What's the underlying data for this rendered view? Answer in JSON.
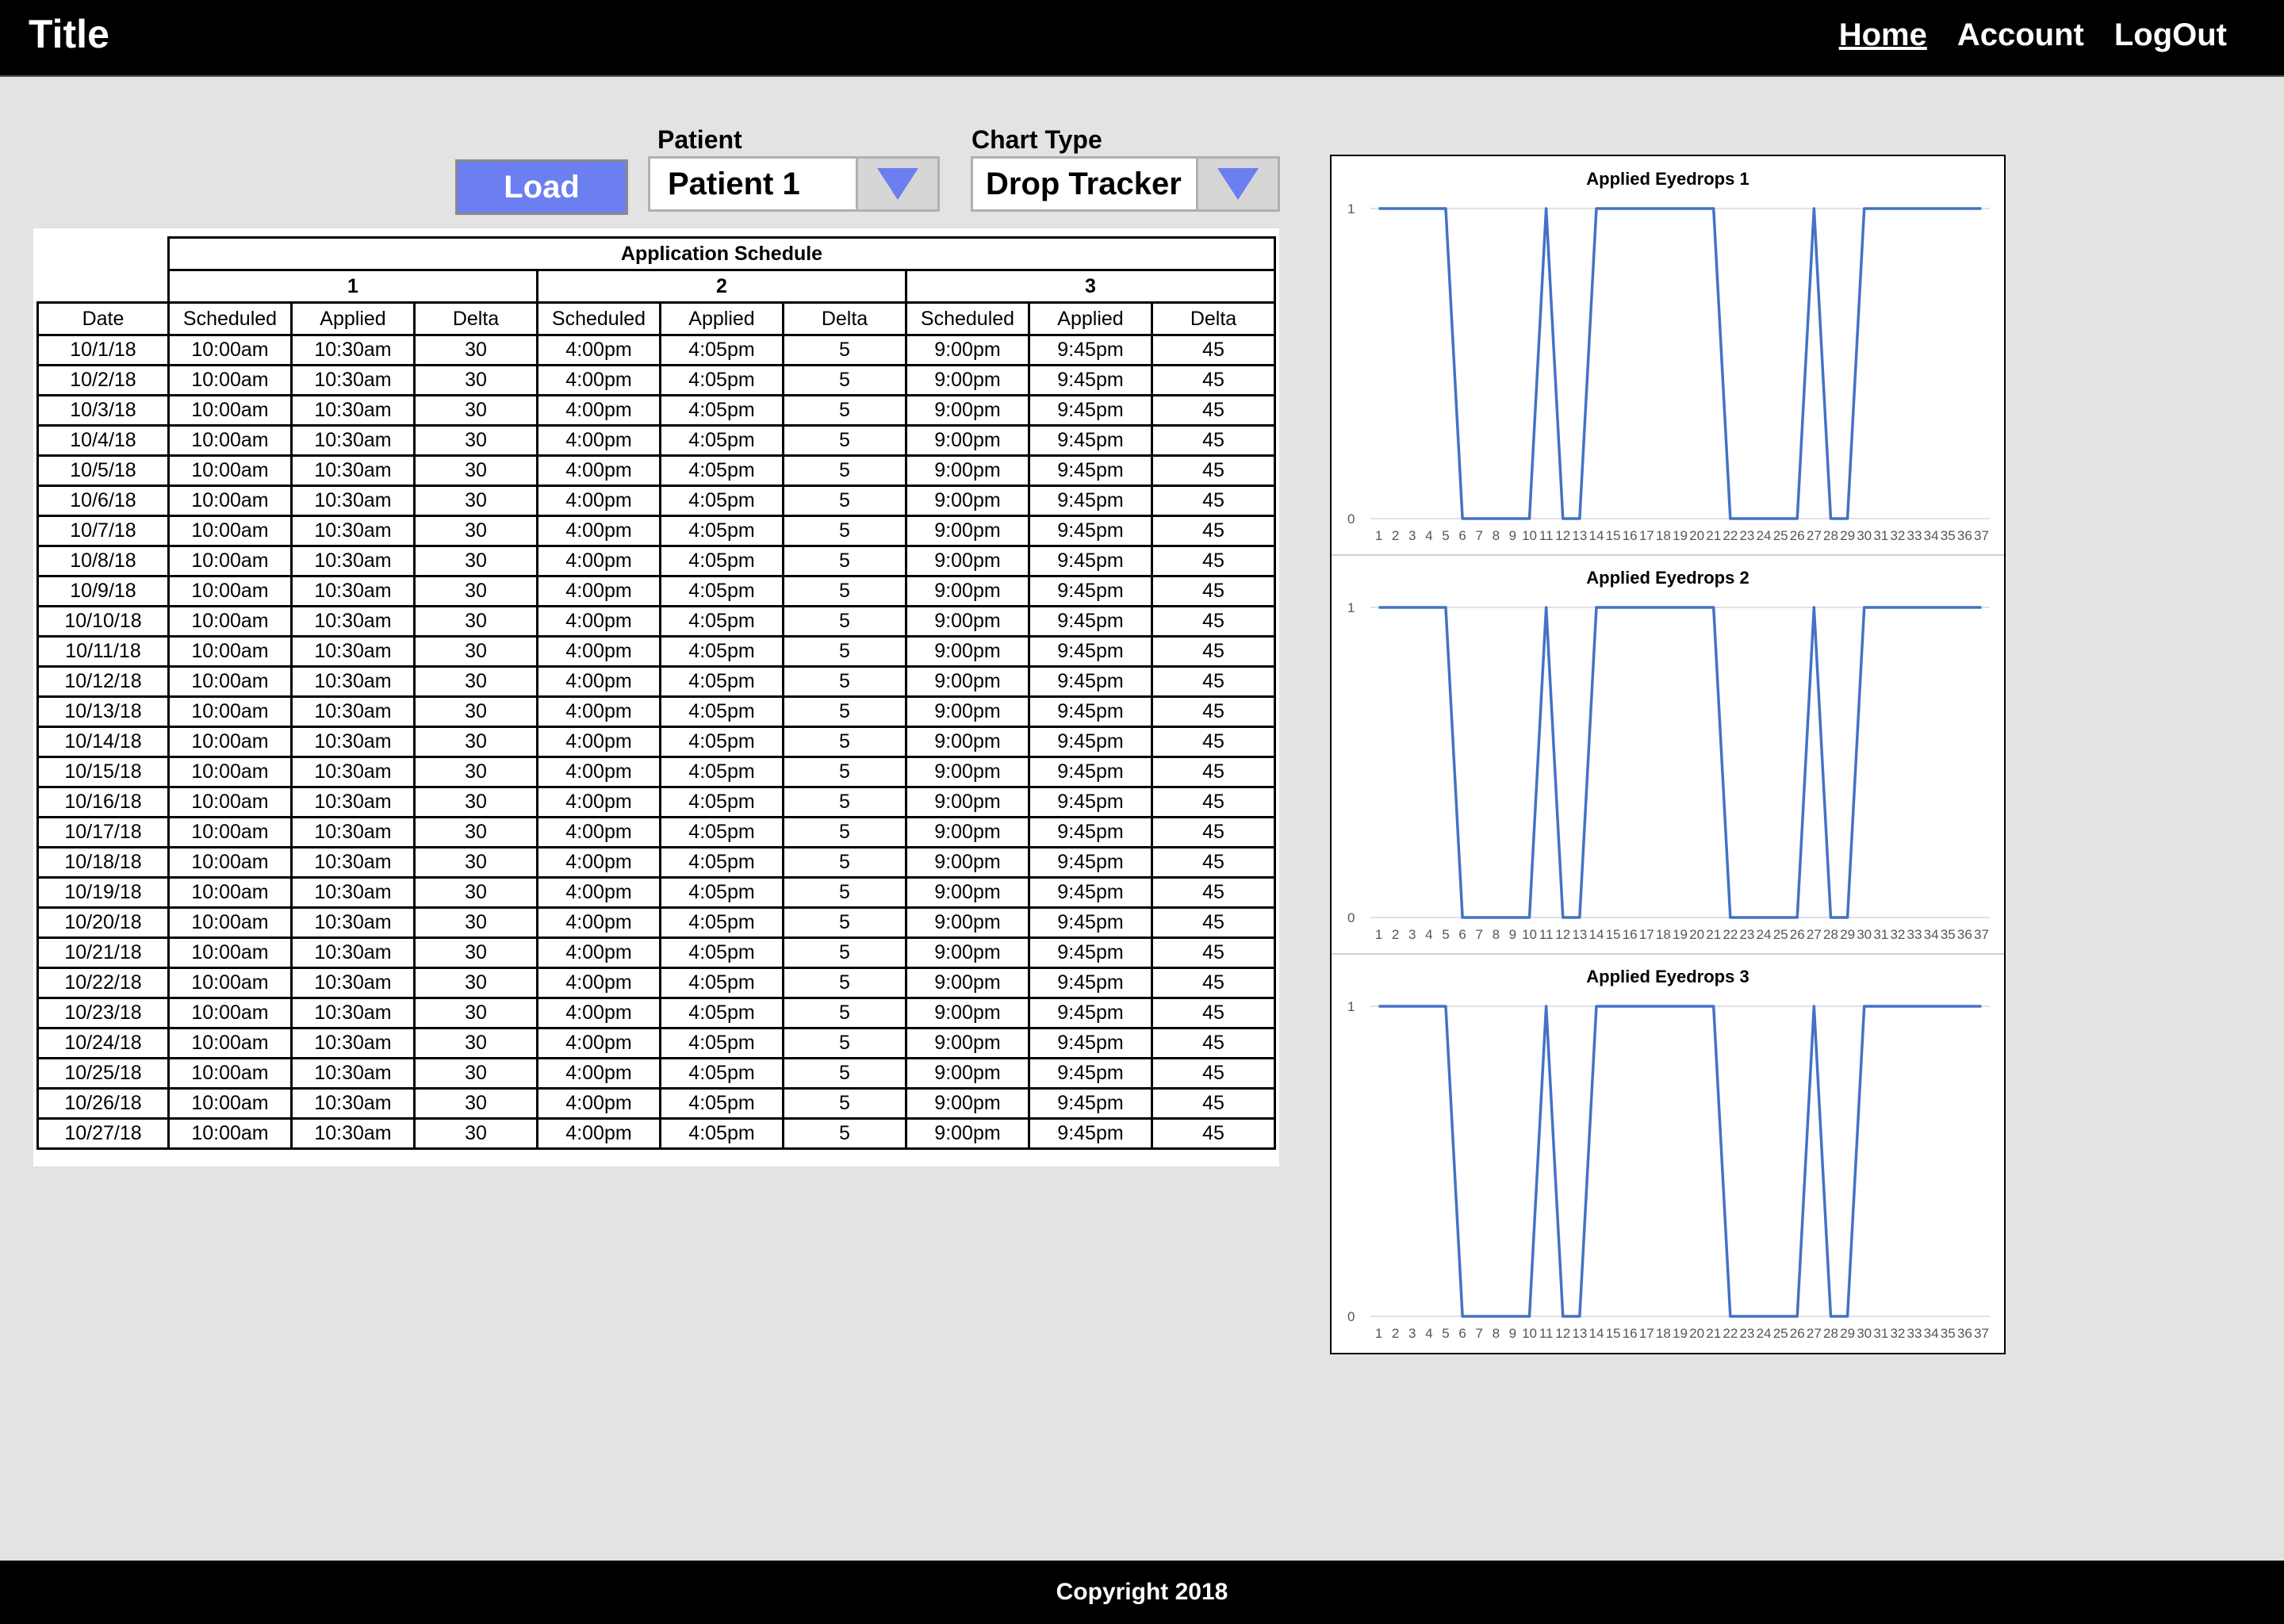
{
  "header": {
    "title": "Title",
    "nav": [
      {
        "label": "Home",
        "active": true
      },
      {
        "label": "Account",
        "active": false
      },
      {
        "label": "LogOut",
        "active": false
      }
    ]
  },
  "controls": {
    "load_label": "Load",
    "patient_label": "Patient",
    "patient_value": "Patient 1",
    "chart_type_label": "Chart Type",
    "chart_type_value": "Drop Tracker",
    "accent_color": "#6b7ff0"
  },
  "table": {
    "title": "Application Schedule",
    "groups": [
      "1",
      "2",
      "3"
    ],
    "columns": [
      "Date",
      "Scheduled",
      "Applied",
      "Delta",
      "Scheduled",
      "Applied",
      "Delta",
      "Scheduled",
      "Applied",
      "Delta"
    ],
    "rows": [
      [
        "10/1/18",
        "10:00am",
        "10:30am",
        "30",
        "4:00pm",
        "4:05pm",
        "5",
        "9:00pm",
        "9:45pm",
        "45"
      ],
      [
        "10/2/18",
        "10:00am",
        "10:30am",
        "30",
        "4:00pm",
        "4:05pm",
        "5",
        "9:00pm",
        "9:45pm",
        "45"
      ],
      [
        "10/3/18",
        "10:00am",
        "10:30am",
        "30",
        "4:00pm",
        "4:05pm",
        "5",
        "9:00pm",
        "9:45pm",
        "45"
      ],
      [
        "10/4/18",
        "10:00am",
        "10:30am",
        "30",
        "4:00pm",
        "4:05pm",
        "5",
        "9:00pm",
        "9:45pm",
        "45"
      ],
      [
        "10/5/18",
        "10:00am",
        "10:30am",
        "30",
        "4:00pm",
        "4:05pm",
        "5",
        "9:00pm",
        "9:45pm",
        "45"
      ],
      [
        "10/6/18",
        "10:00am",
        "10:30am",
        "30",
        "4:00pm",
        "4:05pm",
        "5",
        "9:00pm",
        "9:45pm",
        "45"
      ],
      [
        "10/7/18",
        "10:00am",
        "10:30am",
        "30",
        "4:00pm",
        "4:05pm",
        "5",
        "9:00pm",
        "9:45pm",
        "45"
      ],
      [
        "10/8/18",
        "10:00am",
        "10:30am",
        "30",
        "4:00pm",
        "4:05pm",
        "5",
        "9:00pm",
        "9:45pm",
        "45"
      ],
      [
        "10/9/18",
        "10:00am",
        "10:30am",
        "30",
        "4:00pm",
        "4:05pm",
        "5",
        "9:00pm",
        "9:45pm",
        "45"
      ],
      [
        "10/10/18",
        "10:00am",
        "10:30am",
        "30",
        "4:00pm",
        "4:05pm",
        "5",
        "9:00pm",
        "9:45pm",
        "45"
      ],
      [
        "10/11/18",
        "10:00am",
        "10:30am",
        "30",
        "4:00pm",
        "4:05pm",
        "5",
        "9:00pm",
        "9:45pm",
        "45"
      ],
      [
        "10/12/18",
        "10:00am",
        "10:30am",
        "30",
        "4:00pm",
        "4:05pm",
        "5",
        "9:00pm",
        "9:45pm",
        "45"
      ],
      [
        "10/13/18",
        "10:00am",
        "10:30am",
        "30",
        "4:00pm",
        "4:05pm",
        "5",
        "9:00pm",
        "9:45pm",
        "45"
      ],
      [
        "10/14/18",
        "10:00am",
        "10:30am",
        "30",
        "4:00pm",
        "4:05pm",
        "5",
        "9:00pm",
        "9:45pm",
        "45"
      ],
      [
        "10/15/18",
        "10:00am",
        "10:30am",
        "30",
        "4:00pm",
        "4:05pm",
        "5",
        "9:00pm",
        "9:45pm",
        "45"
      ],
      [
        "10/16/18",
        "10:00am",
        "10:30am",
        "30",
        "4:00pm",
        "4:05pm",
        "5",
        "9:00pm",
        "9:45pm",
        "45"
      ],
      [
        "10/17/18",
        "10:00am",
        "10:30am",
        "30",
        "4:00pm",
        "4:05pm",
        "5",
        "9:00pm",
        "9:45pm",
        "45"
      ],
      [
        "10/18/18",
        "10:00am",
        "10:30am",
        "30",
        "4:00pm",
        "4:05pm",
        "5",
        "9:00pm",
        "9:45pm",
        "45"
      ],
      [
        "10/19/18",
        "10:00am",
        "10:30am",
        "30",
        "4:00pm",
        "4:05pm",
        "5",
        "9:00pm",
        "9:45pm",
        "45"
      ],
      [
        "10/20/18",
        "10:00am",
        "10:30am",
        "30",
        "4:00pm",
        "4:05pm",
        "5",
        "9:00pm",
        "9:45pm",
        "45"
      ],
      [
        "10/21/18",
        "10:00am",
        "10:30am",
        "30",
        "4:00pm",
        "4:05pm",
        "5",
        "9:00pm",
        "9:45pm",
        "45"
      ],
      [
        "10/22/18",
        "10:00am",
        "10:30am",
        "30",
        "4:00pm",
        "4:05pm",
        "5",
        "9:00pm",
        "9:45pm",
        "45"
      ],
      [
        "10/23/18",
        "10:00am",
        "10:30am",
        "30",
        "4:00pm",
        "4:05pm",
        "5",
        "9:00pm",
        "9:45pm",
        "45"
      ],
      [
        "10/24/18",
        "10:00am",
        "10:30am",
        "30",
        "4:00pm",
        "4:05pm",
        "5",
        "9:00pm",
        "9:45pm",
        "45"
      ],
      [
        "10/25/18",
        "10:00am",
        "10:30am",
        "30",
        "4:00pm",
        "4:05pm",
        "5",
        "9:00pm",
        "9:45pm",
        "45"
      ],
      [
        "10/26/18",
        "10:00am",
        "10:30am",
        "30",
        "4:00pm",
        "4:05pm",
        "5",
        "9:00pm",
        "9:45pm",
        "45"
      ],
      [
        "10/27/18",
        "10:00am",
        "10:30am",
        "30",
        "4:00pm",
        "4:05pm",
        "5",
        "9:00pm",
        "9:45pm",
        "45"
      ]
    ]
  },
  "chart_data": [
    {
      "type": "line",
      "title": "Applied Eyedrops 1",
      "x": [
        1,
        2,
        3,
        4,
        5,
        6,
        7,
        8,
        9,
        10,
        11,
        12,
        13,
        14,
        15,
        16,
        17,
        18,
        19,
        20,
        21,
        22,
        23,
        24,
        25,
        26,
        27,
        28,
        29,
        30,
        31,
        32,
        33,
        34,
        35,
        36,
        37
      ],
      "values": [
        1,
        1,
        1,
        1,
        1,
        0,
        0,
        0,
        0,
        0,
        1,
        0,
        0,
        1,
        1,
        1,
        1,
        1,
        1,
        1,
        1,
        0,
        0,
        0,
        0,
        0,
        1,
        0,
        0,
        1,
        1,
        1,
        1,
        1,
        1,
        1,
        1
      ],
      "ylim": [
        0,
        1
      ],
      "yticks": [
        "0",
        "1"
      ],
      "color": "#4472c4",
      "grid": true
    },
    {
      "type": "line",
      "title": "Applied Eyedrops 2",
      "x": [
        1,
        2,
        3,
        4,
        5,
        6,
        7,
        8,
        9,
        10,
        11,
        12,
        13,
        14,
        15,
        16,
        17,
        18,
        19,
        20,
        21,
        22,
        23,
        24,
        25,
        26,
        27,
        28,
        29,
        30,
        31,
        32,
        33,
        34,
        35,
        36,
        37
      ],
      "values": [
        1,
        1,
        1,
        1,
        1,
        0,
        0,
        0,
        0,
        0,
        1,
        0,
        0,
        1,
        1,
        1,
        1,
        1,
        1,
        1,
        1,
        0,
        0,
        0,
        0,
        0,
        1,
        0,
        0,
        1,
        1,
        1,
        1,
        1,
        1,
        1,
        1
      ],
      "ylim": [
        0,
        1
      ],
      "yticks": [
        "0",
        "1"
      ],
      "color": "#4472c4",
      "grid": true
    },
    {
      "type": "line",
      "title": "Applied Eyedrops 3",
      "x": [
        1,
        2,
        3,
        4,
        5,
        6,
        7,
        8,
        9,
        10,
        11,
        12,
        13,
        14,
        15,
        16,
        17,
        18,
        19,
        20,
        21,
        22,
        23,
        24,
        25,
        26,
        27,
        28,
        29,
        30,
        31,
        32,
        33,
        34,
        35,
        36,
        37
      ],
      "values": [
        1,
        1,
        1,
        1,
        1,
        0,
        0,
        0,
        0,
        0,
        1,
        0,
        0,
        1,
        1,
        1,
        1,
        1,
        1,
        1,
        1,
        0,
        0,
        0,
        0,
        0,
        1,
        0,
        0,
        1,
        1,
        1,
        1,
        1,
        1,
        1,
        1
      ],
      "ylim": [
        0,
        1
      ],
      "yticks": [
        "0",
        "1"
      ],
      "color": "#4472c4",
      "grid": true
    }
  ],
  "footer": {
    "copyright": "Copyright 2018"
  }
}
